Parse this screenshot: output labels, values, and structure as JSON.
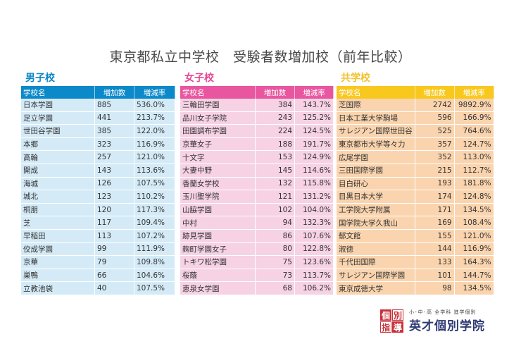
{
  "title": "東京都私立中学校　受験者数増加校（前年比較）",
  "columns": {
    "name": "学校名",
    "increase": "増加数",
    "rate": "増減率"
  },
  "boys": {
    "label": "男子校",
    "color": "#0c89c9",
    "rows": [
      {
        "name": "日本学園",
        "increase": "885",
        "rate": "536.0%"
      },
      {
        "name": "足立学園",
        "increase": "441",
        "rate": "213.7%"
      },
      {
        "name": "世田谷学園",
        "increase": "385",
        "rate": "122.0%"
      },
      {
        "name": "本郷",
        "increase": "323",
        "rate": "116.9%"
      },
      {
        "name": "高輪",
        "increase": "257",
        "rate": "121.0%"
      },
      {
        "name": "開成",
        "increase": "143",
        "rate": "113.6%"
      },
      {
        "name": "海城",
        "increase": "126",
        "rate": "107.5%"
      },
      {
        "name": "城北",
        "increase": "123",
        "rate": "110.2%"
      },
      {
        "name": "桐朋",
        "increase": "120",
        "rate": "117.3%"
      },
      {
        "name": "芝",
        "increase": "117",
        "rate": "109.4%"
      },
      {
        "name": "早稲田",
        "increase": "113",
        "rate": "107.2%"
      },
      {
        "name": "佼成学園",
        "increase": "99",
        "rate": "111.9%"
      },
      {
        "name": "京華",
        "increase": "79",
        "rate": "109.8%"
      },
      {
        "name": "巣鴨",
        "increase": "66",
        "rate": "104.6%"
      },
      {
        "name": "立教池袋",
        "increase": "40",
        "rate": "107.5%"
      }
    ]
  },
  "girls": {
    "label": "女子校",
    "color": "#e8569f",
    "rows": [
      {
        "name": "三輪田学園",
        "increase": "384",
        "rate": "143.7%"
      },
      {
        "name": "品川女子学院",
        "increase": "243",
        "rate": "125.2%"
      },
      {
        "name": "田園調布学園",
        "increase": "224",
        "rate": "124.5%"
      },
      {
        "name": "京華女子",
        "increase": "188",
        "rate": "191.7%"
      },
      {
        "name": "十文字",
        "increase": "153",
        "rate": "124.9%"
      },
      {
        "name": "大妻中野",
        "increase": "145",
        "rate": "114.6%"
      },
      {
        "name": "香蘭女学校",
        "increase": "132",
        "rate": "115.8%"
      },
      {
        "name": "玉川聖学院",
        "increase": "121",
        "rate": "131.2%"
      },
      {
        "name": "山脇学園",
        "increase": "102",
        "rate": "104.0%"
      },
      {
        "name": "中村",
        "increase": "94",
        "rate": "132.3%"
      },
      {
        "name": "跡見学園",
        "increase": "86",
        "rate": "107.6%"
      },
      {
        "name": "麹町学園女子",
        "increase": "80",
        "rate": "122.8%"
      },
      {
        "name": "トキワ松学園",
        "increase": "75",
        "rate": "123.6%"
      },
      {
        "name": "桜蔭",
        "increase": "73",
        "rate": "113.7%"
      },
      {
        "name": "恵泉女学園",
        "increase": "68",
        "rate": "106.2%"
      }
    ]
  },
  "coed": {
    "label": "共学校",
    "color": "#f8c81f",
    "rows": [
      {
        "name": "芝国際",
        "increase": "2742",
        "rate": "9892.9%"
      },
      {
        "name": "日本工業大学駒場",
        "increase": "596",
        "rate": "166.9%"
      },
      {
        "name": "サレジアン国際世田谷",
        "increase": "525",
        "rate": "764.6%"
      },
      {
        "name": "東京都市大学等々力",
        "increase": "357",
        "rate": "124.7%"
      },
      {
        "name": "広尾学園",
        "increase": "352",
        "rate": "113.0%"
      },
      {
        "name": "三田国際学園",
        "increase": "215",
        "rate": "112.7%"
      },
      {
        "name": "目白研心",
        "increase": "193",
        "rate": "181.8%"
      },
      {
        "name": "目黒日本大学",
        "increase": "174",
        "rate": "124.8%"
      },
      {
        "name": "工学院大学附属",
        "increase": "171",
        "rate": "134.5%"
      },
      {
        "name": "国学院大学久我山",
        "increase": "169",
        "rate": "108.4%"
      },
      {
        "name": "郁文館",
        "increase": "155",
        "rate": "121.0%"
      },
      {
        "name": "淑徳",
        "increase": "144",
        "rate": "116.9%"
      },
      {
        "name": "千代田国際",
        "increase": "133",
        "rate": "164.3%"
      },
      {
        "name": "サレジアン国際学園",
        "increase": "101",
        "rate": "144.7%"
      },
      {
        "name": "東京成徳大学",
        "increase": "98",
        "rate": "134.5%"
      }
    ]
  },
  "logo": {
    "box": [
      "個",
      "別",
      "指",
      "導"
    ],
    "subtitle": "小･中･高 全学科 進学個別",
    "name": "英才個別学院"
  }
}
